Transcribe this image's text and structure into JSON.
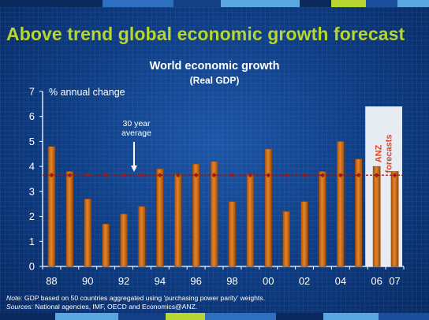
{
  "slide": {
    "title": "Above trend global economic growth forecast",
    "colors": {
      "title": "#b8d630",
      "bar": "#d9761a",
      "average_line": "#8b1a1a",
      "forecast_label": "#e8431e"
    }
  },
  "chart_data": {
    "type": "bar",
    "title": "World economic growth",
    "subtitle": "(Real GDP)",
    "ylabel": "% annual change",
    "ylim": [
      0,
      7
    ],
    "yticks": [
      0,
      1,
      2,
      3,
      4,
      5,
      6,
      7
    ],
    "categories": [
      "88",
      "89",
      "90",
      "91",
      "92",
      "93",
      "94",
      "95",
      "96",
      "97",
      "98",
      "99",
      "00",
      "01",
      "02",
      "03",
      "04",
      "05",
      "06",
      "07"
    ],
    "xtick_labels": [
      "88",
      "90",
      "92",
      "94",
      "96",
      "98",
      "00",
      "02",
      "04",
      "06",
      "07"
    ],
    "values": [
      4.8,
      3.8,
      2.7,
      1.7,
      2.1,
      2.4,
      3.9,
      3.7,
      4.1,
      4.2,
      2.6,
      3.7,
      4.7,
      2.2,
      2.6,
      3.8,
      5.0,
      4.3,
      4.0,
      3.8
    ],
    "average": {
      "label_line1": "30 year",
      "label_line2": "average",
      "value": 3.65
    },
    "forecast": {
      "label_line1": "ANZ",
      "label_line2": "forecasts",
      "categories": [
        "06",
        "07"
      ]
    },
    "grid": false,
    "legend": "none"
  },
  "notes": {
    "note_label": "Note:",
    "note_text": " GDP based on 50 countries aggregated using 'purchasing power parity' weights.",
    "sources_label": "Sources:",
    "sources_text": " National agencies, IMF, OECD and Economics@ANZ."
  }
}
